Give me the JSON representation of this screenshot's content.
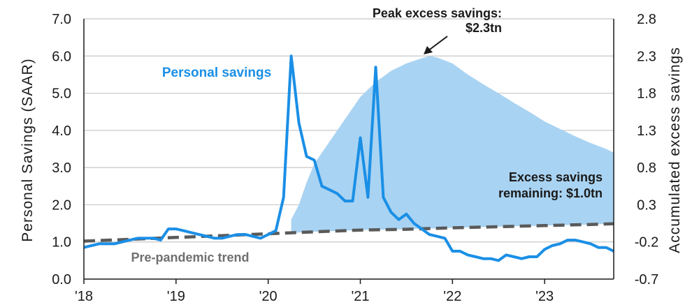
{
  "chart_data": {
    "type": "line",
    "title": "",
    "x_label": "",
    "y_label_left": "Personal Savings (SAAR)",
    "y_label_right": "Accumulated excess savings",
    "x_ticks": [
      "'18",
      "'19",
      "'20",
      "'21",
      "'22",
      "'23"
    ],
    "y_left": {
      "min": 0,
      "max": 7,
      "ticks": [
        "0.0",
        "1.0",
        "2.0",
        "3.0",
        "4.0",
        "5.0",
        "6.0",
        "7.0"
      ]
    },
    "y_right": {
      "min": -0.7,
      "max": 2.8,
      "ticks": [
        "-0.7",
        "-0.2",
        "0.3",
        "0.8",
        "1.3",
        "1.8",
        "2.3",
        "2.8"
      ]
    },
    "colors": {
      "personal_savings": "#1a8fe6",
      "excess_area": "#a9d3f2",
      "trend": "#5a5a5a",
      "grid": "#c8c8c8"
    },
    "series": [
      {
        "name": "Personal savings",
        "axis": "left",
        "style": "line",
        "x": [
          2018.0,
          2018.083,
          2018.167,
          2018.25,
          2018.333,
          2018.417,
          2018.5,
          2018.583,
          2018.667,
          2018.75,
          2018.833,
          2018.917,
          2019.0,
          2019.083,
          2019.167,
          2019.25,
          2019.333,
          2019.417,
          2019.5,
          2019.583,
          2019.667,
          2019.75,
          2019.833,
          2019.917,
          2020.0,
          2020.083,
          2020.167,
          2020.25,
          2020.333,
          2020.417,
          2020.5,
          2020.583,
          2020.667,
          2020.75,
          2020.833,
          2020.917,
          2021.0,
          2021.083,
          2021.167,
          2021.25,
          2021.333,
          2021.417,
          2021.5,
          2021.583,
          2021.667,
          2021.75,
          2021.833,
          2021.917,
          2022.0,
          2022.083,
          2022.167,
          2022.25,
          2022.333,
          2022.417,
          2022.5,
          2022.583,
          2022.667,
          2022.75,
          2022.833,
          2022.917,
          2023.0,
          2023.083,
          2023.167,
          2023.25,
          2023.333,
          2023.417,
          2023.5,
          2023.583,
          2023.667,
          2023.75
        ],
        "y": [
          0.85,
          0.9,
          0.95,
          0.95,
          0.95,
          1.0,
          1.05,
          1.1,
          1.1,
          1.1,
          1.05,
          1.35,
          1.35,
          1.3,
          1.25,
          1.2,
          1.15,
          1.1,
          1.1,
          1.15,
          1.2,
          1.2,
          1.15,
          1.1,
          1.2,
          1.3,
          2.2,
          6.0,
          4.2,
          3.3,
          3.2,
          2.5,
          2.4,
          2.3,
          2.1,
          2.1,
          3.8,
          2.2,
          5.7,
          2.2,
          1.8,
          1.6,
          1.75,
          1.5,
          1.35,
          1.2,
          1.15,
          1.1,
          0.75,
          0.75,
          0.65,
          0.6,
          0.55,
          0.55,
          0.5,
          0.65,
          0.6,
          0.55,
          0.6,
          0.6,
          0.8,
          0.9,
          0.95,
          1.05,
          1.05,
          1.0,
          0.95,
          0.85,
          0.85,
          0.75
        ]
      },
      {
        "name": "Pre-pandemic trend",
        "axis": "left",
        "style": "dashed",
        "x": [
          2018.0,
          2018.5,
          2019.0,
          2019.5,
          2020.0,
          2020.5,
          2021.0,
          2021.5,
          2022.0,
          2022.5,
          2023.0,
          2023.5,
          2023.75
        ],
        "y": [
          1.02,
          1.07,
          1.12,
          1.17,
          1.22,
          1.27,
          1.32,
          1.34,
          1.38,
          1.41,
          1.44,
          1.47,
          1.49
        ]
      },
      {
        "name": "Accumulated excess savings",
        "axis": "right",
        "style": "area",
        "x": [
          2020.25,
          2020.333,
          2020.417,
          2020.5,
          2020.667,
          2020.833,
          2021.0,
          2021.167,
          2021.333,
          2021.5,
          2021.667,
          2021.75,
          2021.833,
          2022.0,
          2022.167,
          2022.333,
          2022.5,
          2022.667,
          2022.833,
          2023.0,
          2023.167,
          2023.333,
          2023.5,
          2023.667,
          2023.75
        ],
        "y": [
          0.1,
          0.3,
          0.6,
          0.85,
          1.15,
          1.45,
          1.75,
          1.95,
          2.1,
          2.2,
          2.27,
          2.3,
          2.28,
          2.2,
          2.05,
          1.92,
          1.8,
          1.67,
          1.55,
          1.42,
          1.32,
          1.22,
          1.13,
          1.05,
          1.0
        ]
      }
    ],
    "annotations": [
      {
        "id": "peak",
        "lines": [
          "Peak excess savings:",
          "$2.3tn"
        ]
      },
      {
        "id": "remaining",
        "lines": [
          "Excess savings",
          "remaining: $1.0tn"
        ]
      },
      {
        "id": "personal",
        "lines": [
          "Personal savings"
        ]
      },
      {
        "id": "trend",
        "lines": [
          "Pre-pandemic trend"
        ]
      }
    ]
  }
}
